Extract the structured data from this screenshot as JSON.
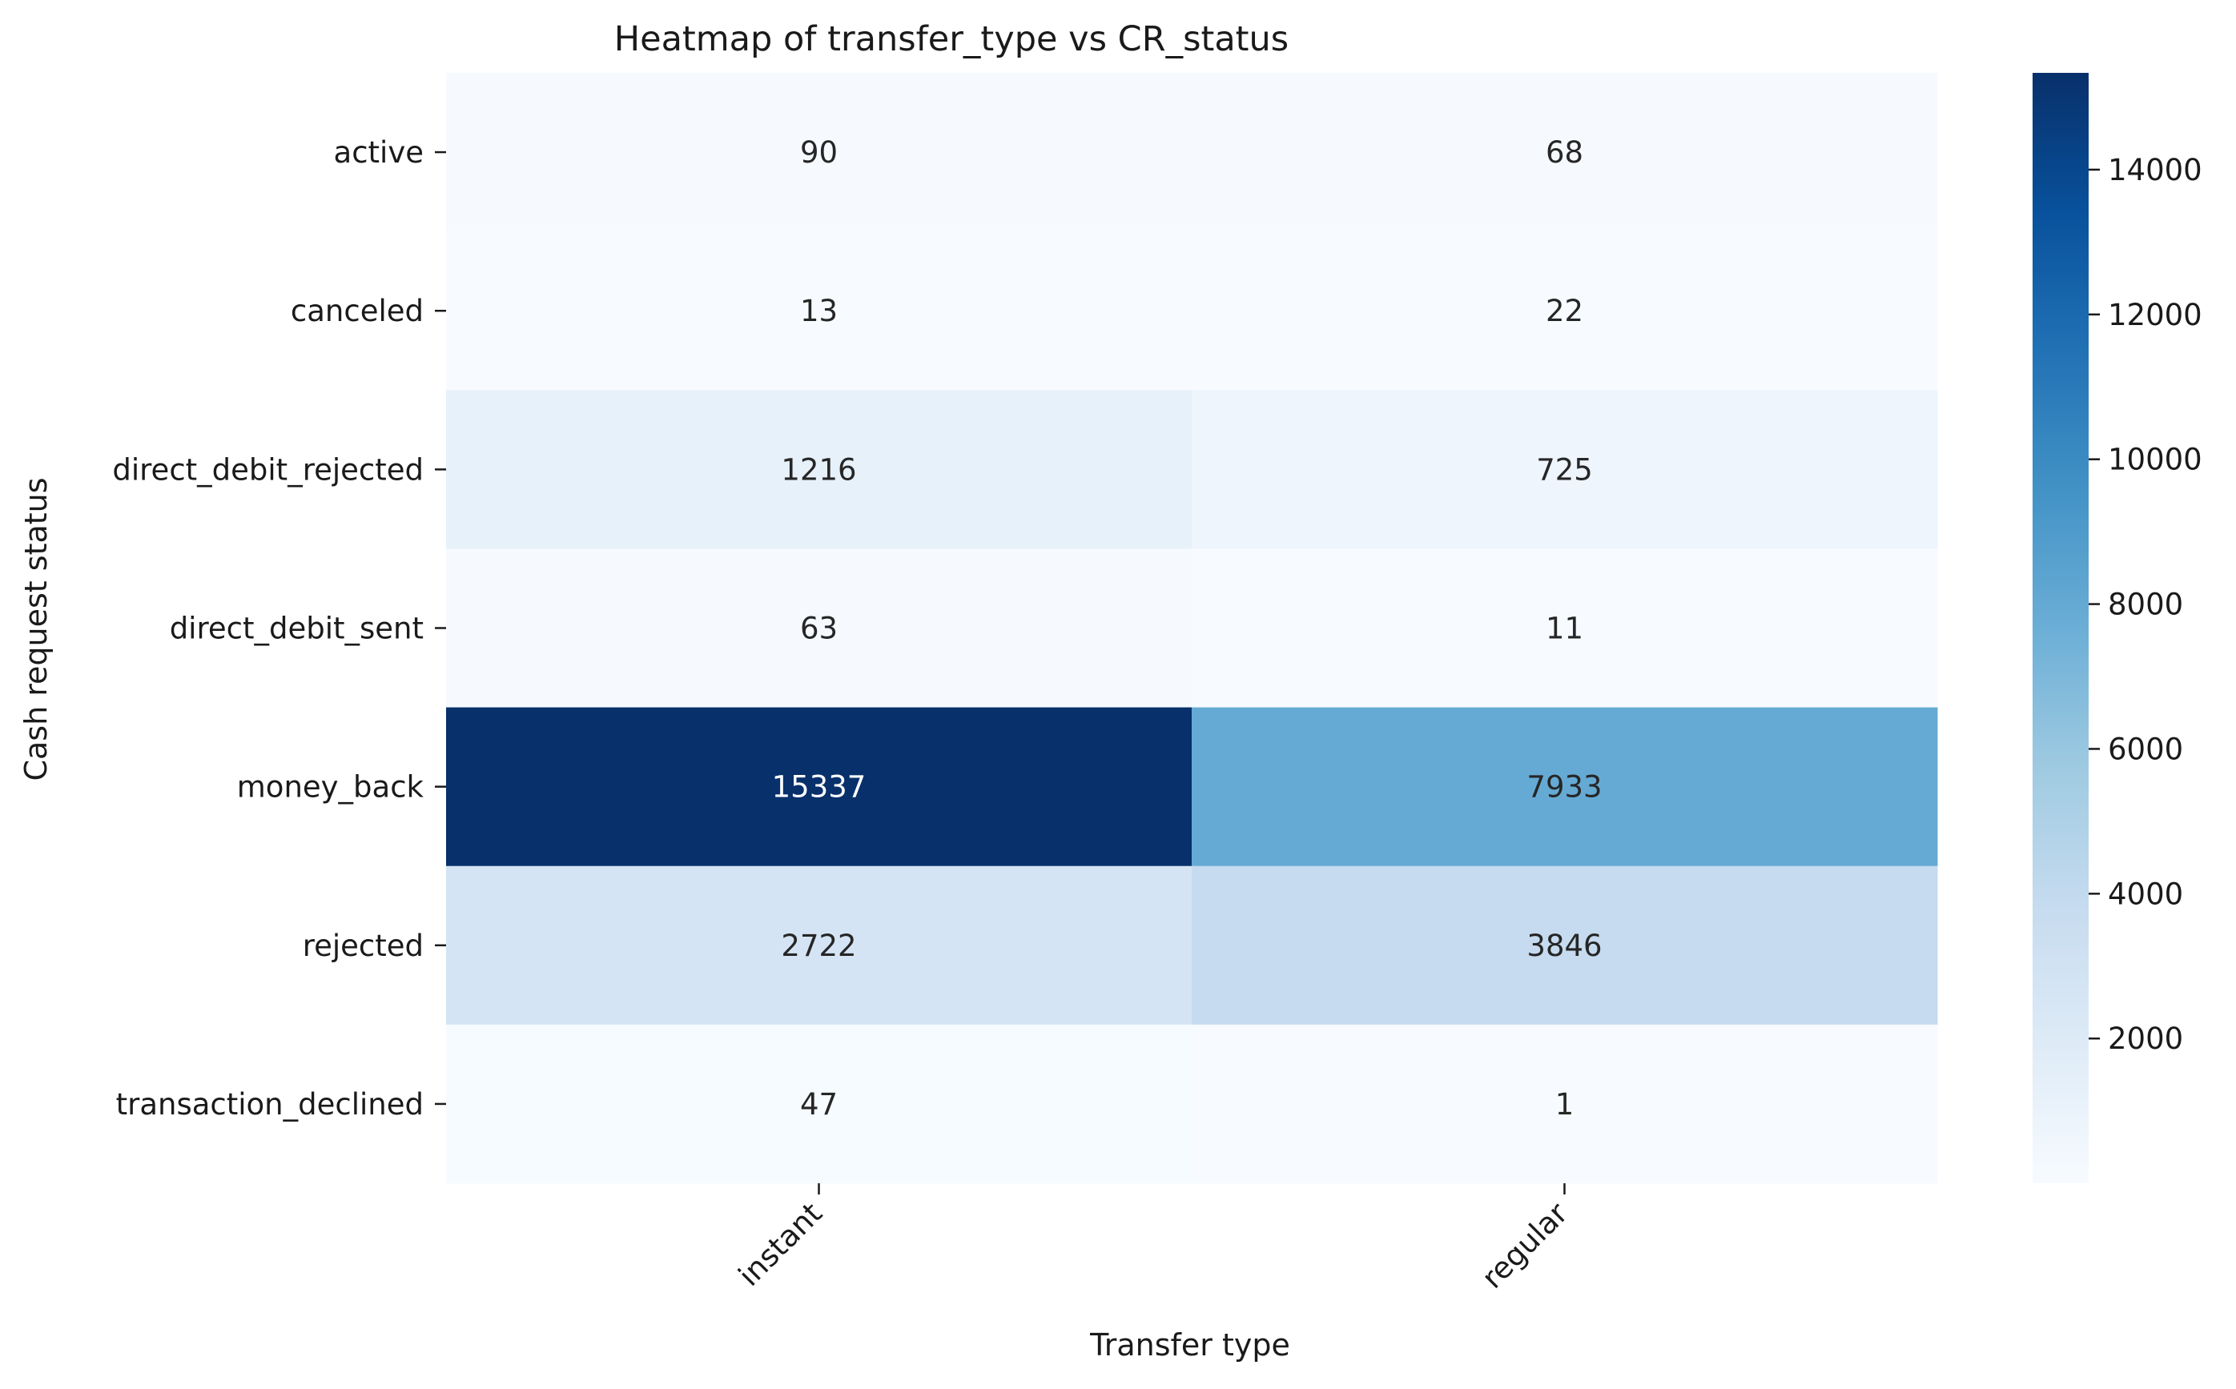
{
  "chart_data": {
    "type": "heatmap",
    "title": "Heatmap of transfer_type vs CR_status",
    "xlabel": "Transfer type",
    "ylabel": "Cash request status",
    "x_categories": [
      "instant",
      "regular"
    ],
    "y_categories": [
      "active",
      "canceled",
      "direct_debit_rejected",
      "direct_debit_sent",
      "money_back",
      "rejected",
      "transaction_declined"
    ],
    "values": [
      [
        90,
        68
      ],
      [
        13,
        22
      ],
      [
        1216,
        725
      ],
      [
        63,
        11
      ],
      [
        15337,
        7933
      ],
      [
        2722,
        3846
      ],
      [
        47,
        1
      ]
    ],
    "colormap": "Blues",
    "colorbar": {
      "min": 1,
      "max": 15337,
      "ticks": [
        "2000",
        "4000",
        "6000",
        "8000",
        "10000",
        "12000",
        "14000"
      ]
    },
    "grid": false,
    "legend": "colorbar-right"
  }
}
